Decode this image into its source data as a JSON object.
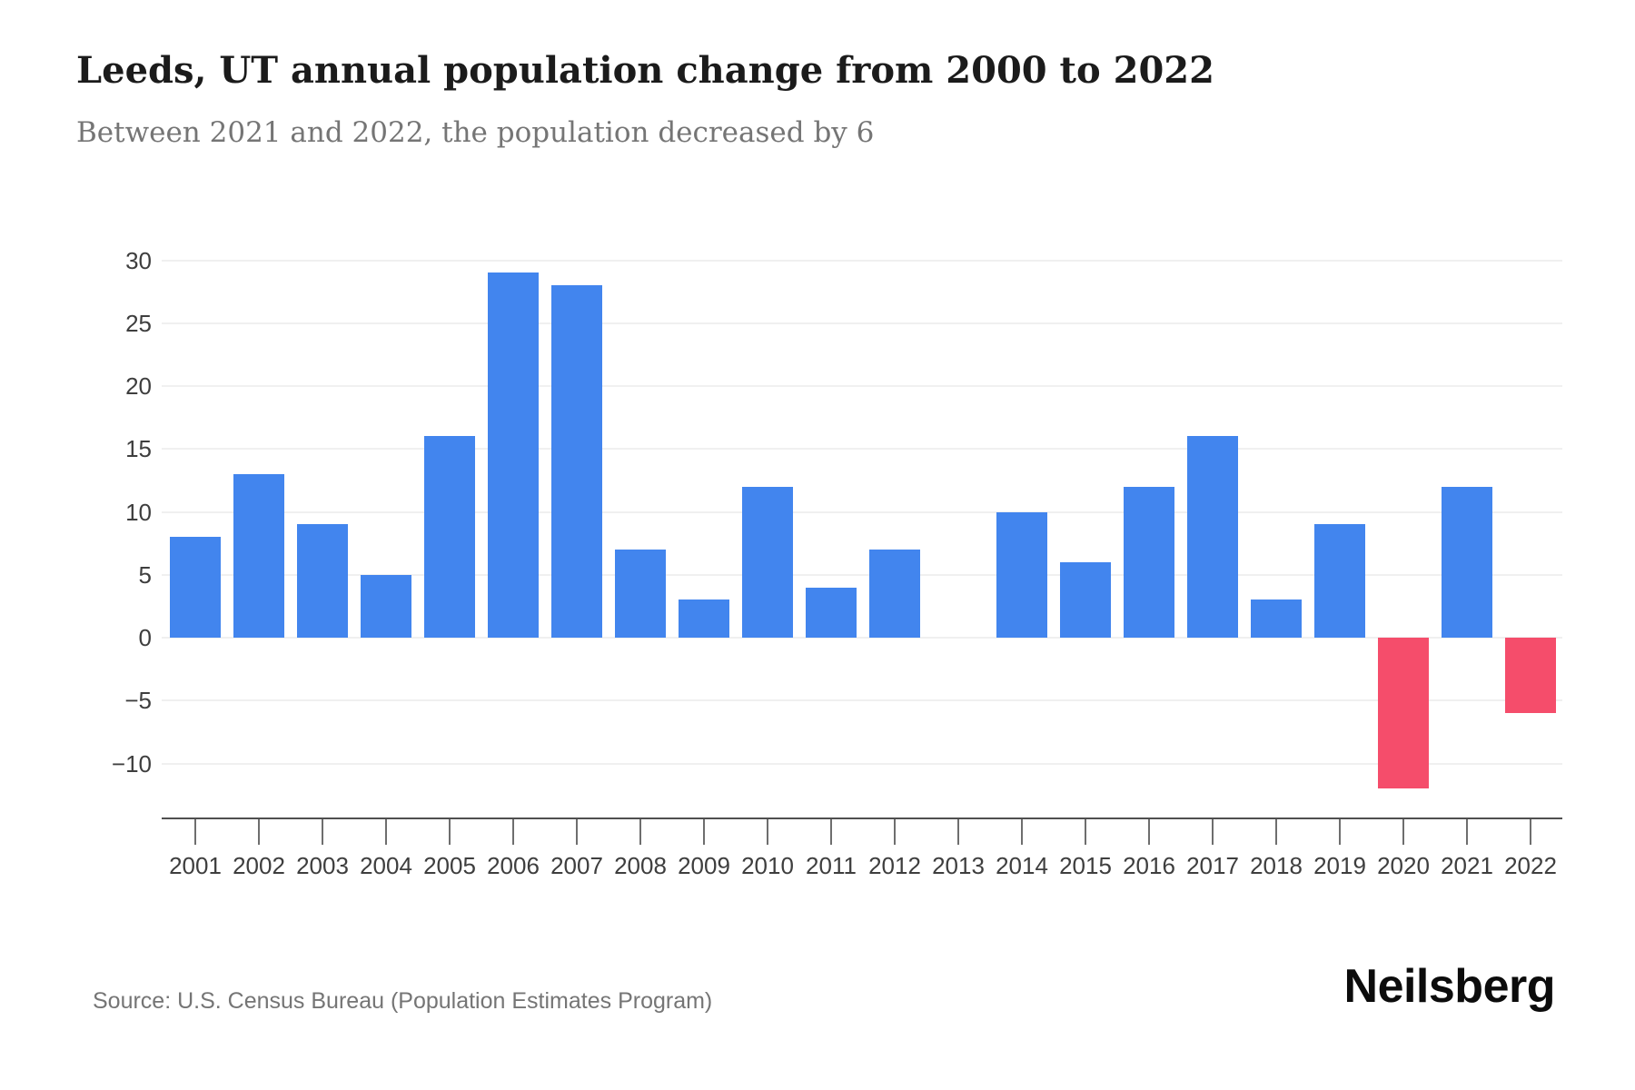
{
  "header": {
    "title": "Leeds, UT annual population change from 2000 to 2022",
    "subtitle": "Between 2021 and 2022, the population decreased by 6"
  },
  "chart_data": {
    "type": "bar",
    "title": "Leeds, UT annual population change from 2000 to 2022",
    "subtitle": "Between 2021 and 2022, the population decreased by 6",
    "categories": [
      "2001",
      "2002",
      "2003",
      "2004",
      "2005",
      "2006",
      "2007",
      "2008",
      "2009",
      "2010",
      "2011",
      "2012",
      "2013",
      "2014",
      "2015",
      "2016",
      "2017",
      "2018",
      "2019",
      "2020",
      "2021",
      "2022"
    ],
    "values": [
      8,
      13,
      9,
      5,
      16,
      29,
      28,
      7,
      3,
      12,
      4,
      7,
      0,
      10,
      6,
      12,
      16,
      3,
      9,
      -12,
      12,
      -6
    ],
    "xlabel": "",
    "ylabel": "",
    "ylim": [
      -10,
      30
    ],
    "ytick_values": [
      30,
      25,
      20,
      15,
      10,
      5,
      0,
      -5,
      -10
    ],
    "ytick_labels": [
      "30",
      "25",
      "20",
      "15",
      "10",
      "5",
      "0",
      "−5",
      "−10"
    ],
    "grid": true,
    "legend": false,
    "colors": {
      "positive_bar": "#4285ee",
      "negative_bar": "#f54d6b",
      "gridline": "#f0f0f0",
      "axis_line": "#4f4f4f",
      "tick": "#6e6e6e",
      "axis_text": "#3e3e3e",
      "title_text": "#1b1b1b",
      "subtitle_text": "#757575"
    }
  },
  "footer": {
    "source": "Source: U.S. Census Bureau (Population Estimates Program)",
    "brand": "Neilsberg"
  }
}
